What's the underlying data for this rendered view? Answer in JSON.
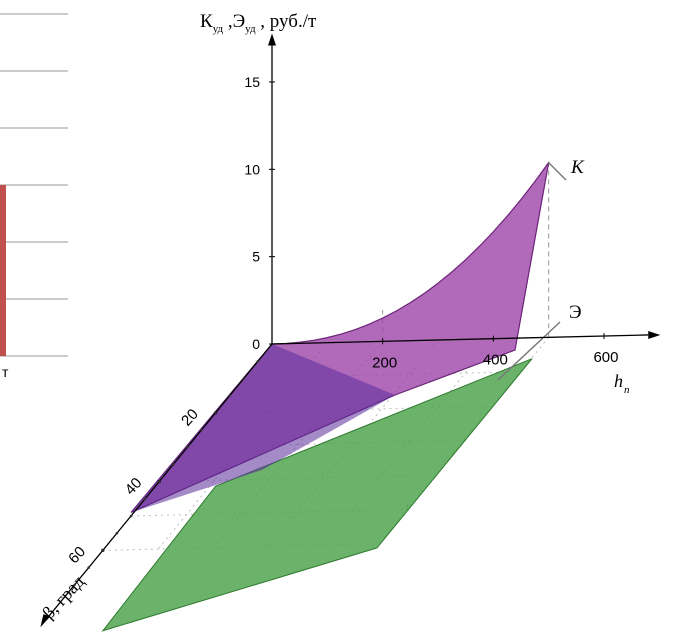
{
  "chart_data": {
    "type": "surface-3d",
    "title": "",
    "z_axis": {
      "label": "К",
      "label_sub1": "уд",
      "label_mid": " ,Э",
      "label_sub2": "уд",
      "label_tail": " , руб./т",
      "ticks": [
        "0",
        "5",
        "10",
        "15"
      ],
      "range": [
        0,
        15
      ]
    },
    "x_axis": {
      "label": "h",
      "label_sub": "п",
      "ticks": [
        "200",
        "400",
        "600"
      ],
      "range": [
        0,
        600
      ]
    },
    "y_axis": {
      "label": "β, град",
      "ticks": [
        "20",
        "40",
        "60"
      ],
      "range": [
        0,
        60
      ]
    },
    "surfaces": [
      {
        "name": "К",
        "color": "#9b3fa6",
        "z_at_beta0": [
          {
            "h": 0,
            "z": 0
          },
          {
            "h": 200,
            "z": 1.5
          },
          {
            "h": 500,
            "z": 10
          }
        ],
        "z_at_beta50": [
          {
            "h": 0,
            "z": 0
          },
          {
            "h": 500,
            "z": 0
          }
        ]
      },
      {
        "name": "Э",
        "color": "#4aa24a",
        "z": 0
      }
    ],
    "grid": true
  },
  "left_fragment": {
    "label": "т",
    "bar_color": "#c0504d"
  }
}
